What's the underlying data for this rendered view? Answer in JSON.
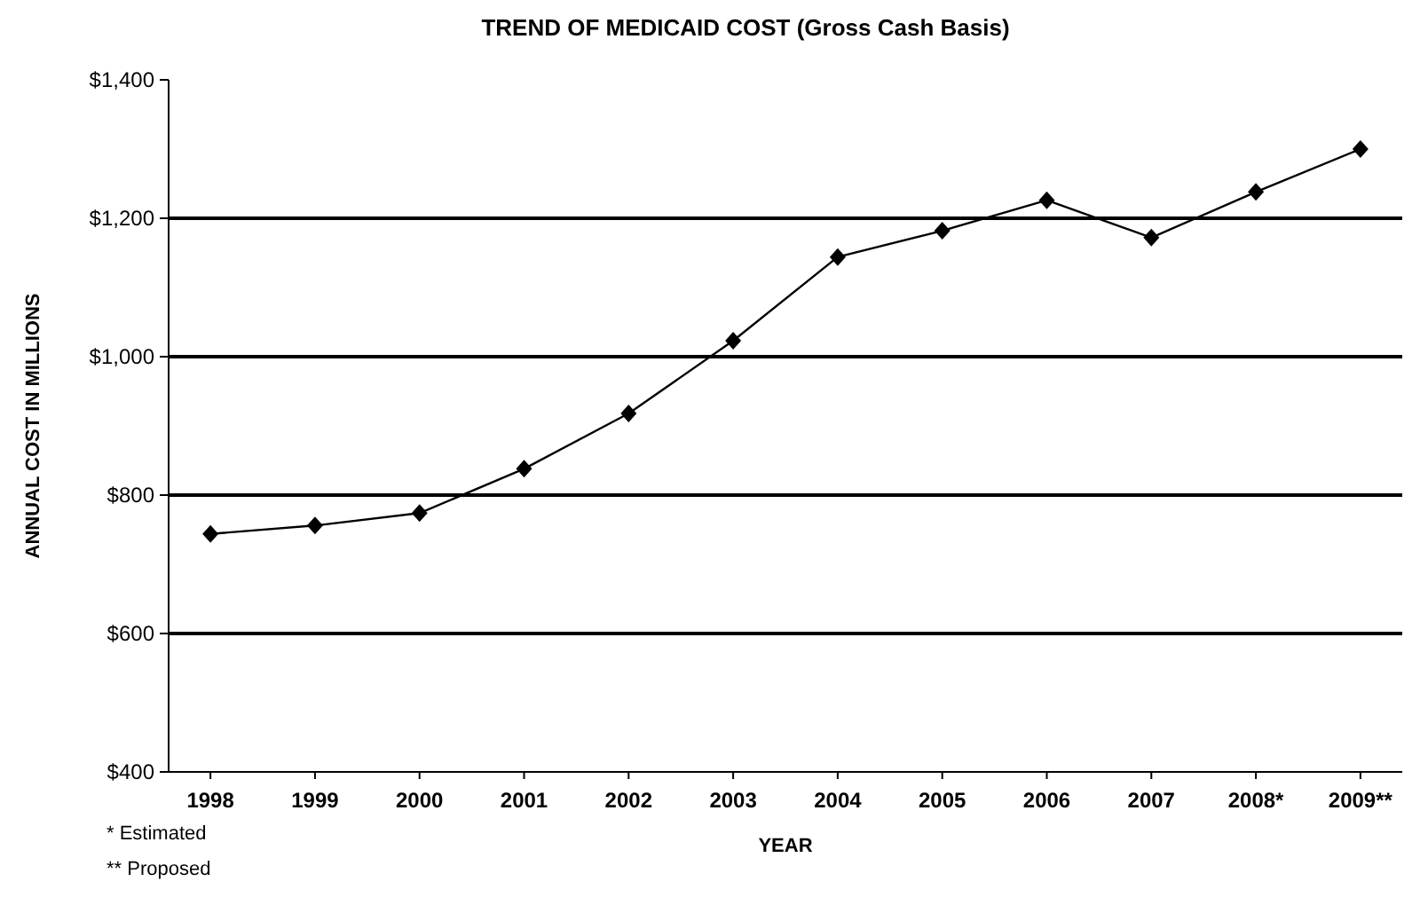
{
  "chart_data": {
    "type": "line",
    "title": "TREND OF MEDICAID COST (Gross Cash Basis)",
    "xlabel": "YEAR",
    "ylabel": "ANNUAL COST IN MILLIONS",
    "categories": [
      "1998",
      "1999",
      "2000",
      "2001",
      "2002",
      "2003",
      "2004",
      "2005",
      "2006",
      "2007",
      "2008*",
      "2009**"
    ],
    "series": [
      {
        "color": "#000000",
        "values": [
          744,
          756,
          774,
          838,
          918,
          1023,
          1144,
          1182,
          1226,
          1172,
          1238,
          1300
        ]
      }
    ],
    "ylim": [
      400,
      1400
    ],
    "yticks": [
      {
        "value": 400,
        "label": "$400"
      },
      {
        "value": 600,
        "label": "$600"
      },
      {
        "value": 800,
        "label": "$800"
      },
      {
        "value": 1000,
        "label": "$1,000"
      },
      {
        "value": 1200,
        "label": "$1,200"
      },
      {
        "value": 1400,
        "label": "$1,400"
      }
    ],
    "grid": "y",
    "marker": "diamond",
    "line_style": "solid",
    "annotations": [
      "* Estimated",
      "** Proposed"
    ]
  }
}
